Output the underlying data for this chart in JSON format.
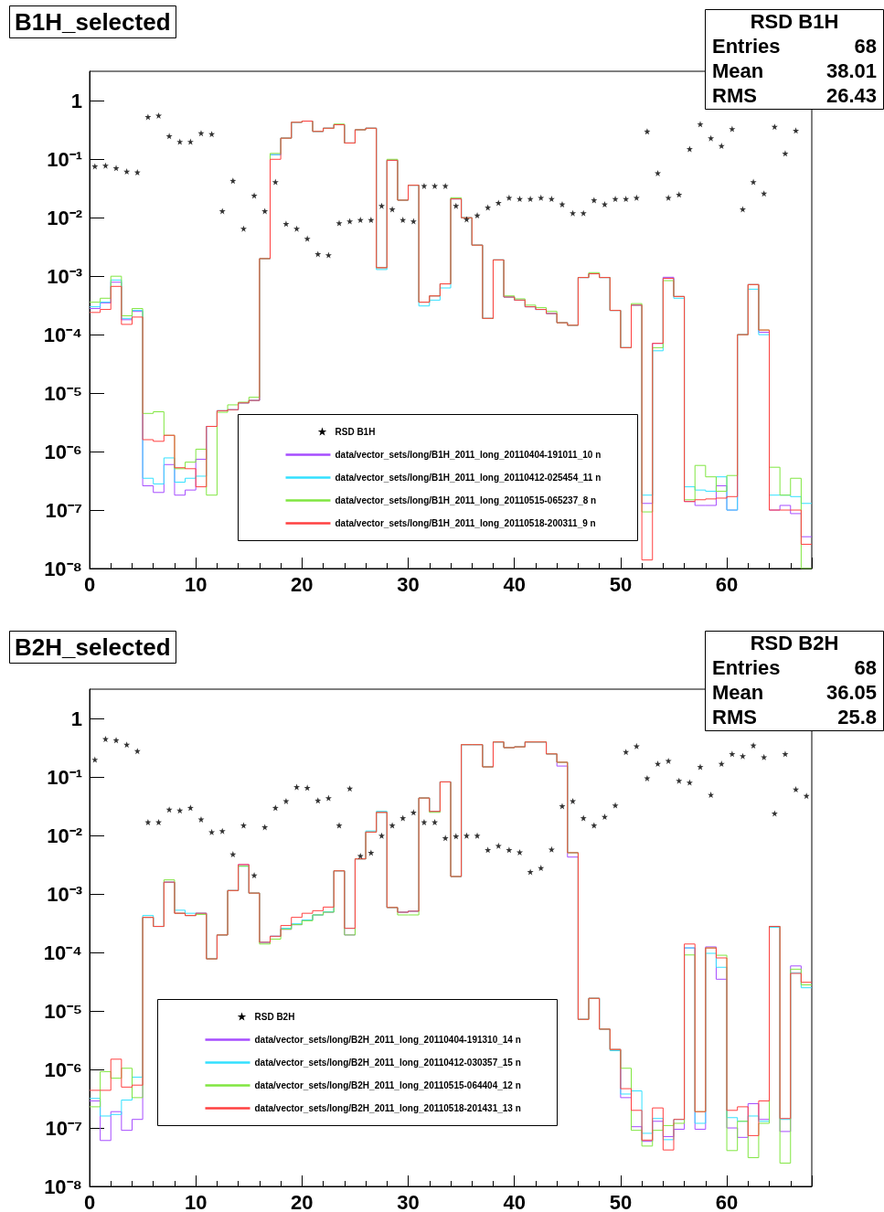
{
  "chart_data": [
    {
      "type": "histogram",
      "title": "B1H_selected",
      "bins": [
        0,
        1,
        2,
        3,
        4,
        5,
        6,
        7,
        8,
        9,
        10,
        11,
        12,
        13,
        14,
        15,
        16,
        17,
        18,
        19,
        20,
        21,
        22,
        23,
        24,
        25,
        26,
        27,
        28,
        29,
        30,
        31,
        32,
        33,
        34,
        35,
        36,
        37,
        38,
        39,
        40,
        41,
        42,
        43,
        44,
        45,
        46,
        47,
        48,
        49,
        50,
        51,
        52,
        53,
        54,
        55,
        56,
        57,
        58,
        59,
        60,
        61,
        62,
        63,
        64,
        65,
        66,
        67,
        68
      ],
      "series": [
        {
          "name": "RSD B1H",
          "type": "scatter",
          "marker": "star",
          "color": "#000000",
          "x": [
            0.5,
            1.5,
            2.5,
            3.5,
            4.5,
            5.5,
            6.5,
            7.5,
            8.5,
            9.5,
            10.5,
            11.5,
            12.5,
            13.5,
            14.5,
            15.5,
            16.5,
            17.5,
            18.5,
            19.5,
            20.5,
            21.5,
            22.5,
            23.5,
            24.5,
            25.5,
            26.5,
            27.5,
            28.5,
            29.5,
            30.5,
            31.5,
            32.5,
            33.5,
            34.5,
            35.5,
            36.5,
            37.5,
            38.5,
            39.5,
            40.5,
            41.5,
            42.5,
            43.5,
            44.5,
            45.5,
            46.5,
            47.5,
            48.5,
            49.5,
            50.5,
            51.5,
            52.5,
            53.5,
            54.5,
            55.5,
            56.5,
            57.5,
            58.5,
            59.5,
            60.5,
            61.5,
            62.5,
            63.5,
            64.5,
            65.5,
            66.5
          ],
          "values": [
            0.076,
            0.078,
            0.071,
            0.062,
            0.06,
            0.53,
            0.56,
            0.25,
            0.2,
            0.2,
            0.28,
            0.27,
            0.013,
            0.043,
            0.0065,
            0.024,
            0.013,
            0.041,
            0.0079,
            0.0065,
            0.0044,
            0.0024,
            0.0023,
            0.0081,
            0.0087,
            0.0092,
            0.0092,
            0.016,
            0.014,
            0.0092,
            0.0087,
            0.035,
            0.035,
            0.035,
            0.016,
            0.0094,
            0.011,
            0.015,
            0.018,
            0.022,
            0.021,
            0.021,
            0.022,
            0.021,
            0.017,
            0.012,
            0.012,
            0.02,
            0.017,
            0.021,
            0.021,
            0.022,
            0.3,
            0.058,
            0.022,
            0.025,
            0.15,
            0.4,
            0.23,
            0.17,
            0.33,
            0.014,
            0.041,
            0.026,
            0.36,
            0.126,
            0.31
          ]
        },
        {
          "name": "data/vector_sets/long/B1H_2011_long_20110404-191011_10 n",
          "color": "#a64dff",
          "values": [
            0.00028,
            0.00035,
            0.00079,
            0.00018,
            0.00025,
            2.6e-07,
            2e-07,
            6e-07,
            1.8e-07,
            2.2e-07,
            7.4e-07,
            2.7e-06,
            5e-06,
            5.2e-06,
            6.8e-06,
            7.5e-06,
            0.002,
            0.12,
            0.23,
            0.43,
            0.45,
            0.3,
            0.34,
            0.39,
            0.19,
            0.32,
            0.34,
            0.0014,
            0.096,
            0.02,
            0.036,
            0.00036,
            0.00046,
            0.00074,
            0.021,
            0.01,
            0.0034,
            0.00019,
            0.0019,
            0.00044,
            0.00039,
            0.0003,
            0.00027,
            0.00023,
            0.00016,
            0.000145,
            0.00095,
            0.0011,
            0.00095,
            0.00026,
            6e-05,
            0.00032,
            1.3e-07,
            7.1e-05,
            0.00096,
            0.00045,
            1.4e-07,
            1.2e-07,
            1.2e-07,
            2.6e-07,
            1e-07,
            0.0001,
            0.00072,
            0.00011,
            1e-07,
            1.2e-07,
            8.7e-08,
            3.5e-08
          ]
        },
        {
          "name": "data/vector_sets/long/B1H_2011_long_20110412-025454_11 n",
          "color": "#33e0ff",
          "values": [
            0.0003,
            0.00036,
            0.00086,
            0.00019,
            0.00026,
            3.5e-07,
            2.8e-07,
            7.8e-07,
            3e-07,
            3.5e-07,
            3.8e-07,
            2.7e-06,
            5e-06,
            5.2e-06,
            6.8e-06,
            7.5e-06,
            0.002,
            0.12,
            0.23,
            0.43,
            0.45,
            0.3,
            0.34,
            0.39,
            0.19,
            0.32,
            0.34,
            0.0013,
            0.096,
            0.02,
            0.036,
            0.00031,
            0.00039,
            0.00063,
            0.021,
            0.01,
            0.0034,
            0.00019,
            0.0019,
            0.00044,
            0.00039,
            0.0003,
            0.00027,
            0.00023,
            0.00016,
            0.000145,
            0.00095,
            0.0011,
            0.00095,
            0.00026,
            6e-05,
            0.00032,
            1.8e-07,
            5.3e-05,
            0.00092,
            0.00042,
            2.5e-07,
            2.2e-07,
            2.1e-07,
            3.7e-07,
            1e-07,
            0.0001,
            0.0006,
            0.0001,
            1.8e-07,
            1.8e-07,
            1.7e-07,
            1.3e-07
          ]
        },
        {
          "name": "data/vector_sets/long/B1H_2011_long_20110515-065237_8 n",
          "color": "#80e640",
          "values": [
            0.00036,
            0.00042,
            0.001,
            0.00021,
            0.00028,
            4.5e-06,
            4.8e-06,
            1.9e-06,
            5.1e-07,
            6.6e-07,
            1.1e-06,
            1.8e-07,
            4.7e-06,
            6.3e-06,
            7e-06,
            8.5e-06,
            0.002,
            0.126,
            0.23,
            0.43,
            0.45,
            0.3,
            0.34,
            0.4,
            0.19,
            0.32,
            0.34,
            0.0014,
            0.1,
            0.02,
            0.036,
            0.00036,
            0.00046,
            0.00074,
            0.022,
            0.01,
            0.0034,
            0.00019,
            0.0019,
            0.00046,
            0.00041,
            0.00032,
            0.00029,
            0.00025,
            0.00016,
            0.000145,
            0.00095,
            0.00115,
            0.00095,
            0.00026,
            6e-05,
            0.00034,
            9.3e-08,
            6e-05,
            0.00084,
            0.00045,
            1.5e-07,
            5.8e-07,
            3.7e-07,
            2.1e-07,
            3.9e-07,
            0.0001,
            0.00072,
            0.00012,
            5.4e-07,
            1.8e-07,
            3.5e-07,
            1e-08
          ]
        },
        {
          "name": "data/vector_sets/long/B1H_2011_long_20110518-200311_9 n",
          "color": "#ff4040",
          "values": [
            0.00024,
            0.00027,
            0.00067,
            0.00015,
            0.0002,
            1.6e-06,
            1.5e-06,
            1.9e-06,
            5.3e-07,
            5.1e-07,
            2.5e-07,
            2.7e-06,
            5e-06,
            5.2e-06,
            6.8e-06,
            7.5e-06,
            0.002,
            0.1,
            0.23,
            0.43,
            0.45,
            0.3,
            0.34,
            0.39,
            0.19,
            0.32,
            0.34,
            0.0014,
            0.096,
            0.02,
            0.036,
            0.00036,
            0.00046,
            0.00074,
            0.021,
            0.01,
            0.0034,
            0.00019,
            0.0019,
            0.00044,
            0.00039,
            0.0003,
            0.00027,
            0.00023,
            0.00016,
            0.000145,
            0.00095,
            0.0011,
            0.00095,
            0.00026,
            6e-05,
            0.00032,
            1.4e-08,
            7.1e-05,
            0.00092,
            0.00045,
            1.4e-07,
            1.5e-07,
            1.55e-07,
            1.6e-07,
            1.7e-07,
            0.0001,
            0.00072,
            0.00012,
            1e-07,
            1e-07,
            1e-07,
            2.6e-08
          ]
        }
      ],
      "xlim": [
        0,
        68
      ],
      "xticks": [
        0,
        10,
        20,
        30,
        40,
        50,
        60
      ],
      "ylim": [
        1e-08,
        3.2
      ],
      "yticks": [
        {
          "value": 1e-08,
          "label": "10⁻⁸"
        },
        {
          "value": 1e-07,
          "label": "10⁻⁷"
        },
        {
          "value": 1e-06,
          "label": "10⁻⁶"
        },
        {
          "value": 1e-05,
          "label": "10⁻⁵"
        },
        {
          "value": 0.0001,
          "label": "10⁻⁴"
        },
        {
          "value": 0.001,
          "label": "10⁻³"
        },
        {
          "value": 0.01,
          "label": "10⁻²"
        },
        {
          "value": 0.1,
          "label": "10⁻¹"
        },
        1
      ],
      "log": true,
      "grid": false,
      "legend": "bottom",
      "annotations": [
        "RSD B1H",
        "Entries 68",
        "Mean 38.01",
        "RMS 26.43"
      ]
    },
    {
      "type": "histogram",
      "title": "B2H_selected",
      "bins": [
        0,
        1,
        2,
        3,
        4,
        5,
        6,
        7,
        8,
        9,
        10,
        11,
        12,
        13,
        14,
        15,
        16,
        17,
        18,
        19,
        20,
        21,
        22,
        23,
        24,
        25,
        26,
        27,
        28,
        29,
        30,
        31,
        32,
        33,
        34,
        35,
        36,
        37,
        38,
        39,
        40,
        41,
        42,
        43,
        44,
        45,
        46,
        47,
        48,
        49,
        50,
        51,
        52,
        53,
        54,
        55,
        56,
        57,
        58,
        59,
        60,
        61,
        62,
        63,
        64,
        65,
        66,
        67,
        68
      ],
      "series": [
        {
          "name": "RSD B2H",
          "type": "scatter",
          "marker": "star",
          "color": "#000000",
          "x": [
            0.5,
            1.5,
            2.5,
            3.5,
            4.5,
            5.5,
            6.5,
            7.5,
            8.5,
            9.5,
            10.5,
            11.5,
            12.5,
            13.5,
            14.5,
            15.5,
            16.5,
            17.5,
            18.5,
            19.5,
            20.5,
            21.5,
            22.5,
            23.5,
            24.5,
            25.5,
            26.5,
            27.5,
            28.5,
            29.5,
            30.5,
            31.5,
            32.5,
            33.5,
            34.5,
            35.5,
            36.5,
            37.5,
            38.5,
            39.5,
            40.5,
            41.5,
            42.5,
            43.5,
            44.5,
            45.5,
            46.5,
            47.5,
            48.5,
            49.5,
            50.5,
            51.5,
            52.5,
            53.5,
            54.5,
            55.5,
            56.5,
            57.5,
            58.5,
            59.5,
            60.5,
            61.5,
            62.5,
            63.5,
            64.5,
            65.5,
            66.5,
            67.5
          ],
          "values": [
            0.2,
            0.45,
            0.43,
            0.36,
            0.28,
            0.017,
            0.017,
            0.028,
            0.027,
            0.03,
            0.019,
            0.0115,
            0.012,
            0.0048,
            0.015,
            0.0021,
            0.014,
            0.03,
            0.039,
            0.068,
            0.066,
            0.04,
            0.044,
            0.015,
            0.064,
            0.0045,
            0.0051,
            0.01,
            0.015,
            0.02,
            0.025,
            0.017,
            0.017,
            0.0091,
            0.0098,
            0.01,
            0.01,
            0.0057,
            0.0067,
            0.0057,
            0.0052,
            0.0024,
            0.0028,
            0.0058,
            0.032,
            0.039,
            0.02,
            0.015,
            0.021,
            0.033,
            0.27,
            0.34,
            0.096,
            0.17,
            0.19,
            0.087,
            0.081,
            0.15,
            0.05,
            0.17,
            0.25,
            0.23,
            0.35,
            0.22,
            0.024,
            0.25,
            0.062,
            0.048
          ]
        },
        {
          "name": "data/vector_sets/long/B2H_2011_long_20110404-191310_14 n",
          "color": "#a64dff",
          "values": [
            2.9e-07,
            6.1e-08,
            1.9e-07,
            9.1e-08,
            1.4e-07,
            0.0004,
            0.00028,
            0.0016,
            0.00047,
            0.00043,
            0.00047,
            7.8e-05,
            0.0002,
            0.00115,
            0.0032,
            0.00104,
            0.00015,
            0.00019,
            0.00025,
            0.0003,
            0.00036,
            0.00044,
            0.00049,
            0.0025,
            0.0002,
            0.004,
            0.0115,
            0.025,
            0.00059,
            0.00049,
            0.00051,
            0.044,
            0.026,
            0.083,
            0.002,
            0.36,
            0.36,
            0.15,
            0.4,
            0.32,
            0.33,
            0.4,
            0.4,
            0.25,
            0.155,
            0.0043,
            7.2e-06,
            1.65e-05,
            4.9e-06,
            2.2e-06,
            3.3e-07,
            1.05e-07,
            5.9e-08,
            1.3e-07,
            7.1e-08,
            9.5e-08,
            0.00012,
            9.5e-08,
            0.000125,
            3.5e-05,
            1e-07,
            6.9e-08,
            2.6e-07,
            1.4e-07,
            0.00028,
            8.7e-08,
            5.9e-05,
            2.8e-05
          ]
        },
        {
          "name": "data/vector_sets/long/B2H_2011_long_20110412-030357_15 n",
          "color": "#33e0ff",
          "values": [
            3.2e-07,
            1.6e-07,
            1.7e-07,
            3e-07,
            7.4e-07,
            0.00043,
            0.00028,
            0.0016,
            0.00053,
            0.00047,
            0.00047,
            7.8e-05,
            0.0002,
            0.00115,
            0.003,
            0.00104,
            0.00015,
            0.00019,
            0.00026,
            0.00031,
            0.00036,
            0.00044,
            0.0005,
            0.0025,
            0.00026,
            0.004,
            0.012,
            0.026,
            0.00059,
            0.00049,
            0.00051,
            0.044,
            0.026,
            0.083,
            0.002,
            0.36,
            0.36,
            0.15,
            0.4,
            0.32,
            0.33,
            0.4,
            0.4,
            0.25,
            0.18,
            0.0051,
            7.2e-06,
            1.65e-05,
            4.9e-06,
            2.1e-06,
            3.8e-07,
            4.3e-07,
            8.1e-08,
            1.45e-07,
            6.3e-08,
            1.4e-07,
            0.00012,
            1.2e-07,
            9.7e-05,
            5.6e-05,
            1.5e-07,
            1.3e-07,
            1.6e-07,
            1.3e-07,
            0.00027,
            1.4e-07,
            4.5e-05,
            2.5e-05
          ]
        },
        {
          "name": "data/vector_sets/long/B2H_2011_long_20110515-064404_12 n",
          "color": "#80e640",
          "values": [
            2.3e-07,
            9.2e-07,
            7.1e-07,
            1.05e-06,
            3.3e-07,
            0.0004,
            0.00028,
            0.00175,
            0.00047,
            0.00043,
            0.00045,
            7.8e-05,
            0.0002,
            0.00115,
            0.003,
            0.00104,
            0.00014,
            0.00017,
            0.00025,
            0.0003,
            0.00035,
            0.00044,
            0.00049,
            0.0025,
            0.0002,
            0.004,
            0.0115,
            0.025,
            0.00059,
            0.00044,
            0.00044,
            0.044,
            0.025,
            0.083,
            0.002,
            0.36,
            0.36,
            0.15,
            0.4,
            0.32,
            0.33,
            0.4,
            0.4,
            0.25,
            0.18,
            0.0051,
            7.2e-06,
            1.65e-05,
            4.9e-06,
            2.2e-06,
            1.05e-06,
            9.1e-08,
            4.9e-08,
            9.1e-08,
            1.1e-07,
            1.2e-07,
            9.1e-05,
            1.9e-07,
            0.00012,
            9e-05,
            4.1e-08,
            1.3e-07,
            3.1e-08,
            1.2e-07,
            0.00028,
            2.5e-08,
            5.2e-05,
            2.8e-05
          ]
        },
        {
          "name": "data/vector_sets/long/B2H_2011_long_20110518-201431_13 n",
          "color": "#ff4040",
          "values": [
            4.4e-07,
            4.4e-07,
            1.5e-06,
            5e-07,
            5.4e-07,
            0.0004,
            0.00028,
            0.0016,
            0.00047,
            0.00043,
            0.00047,
            7.8e-05,
            0.0002,
            0.00115,
            0.0032,
            0.00104,
            0.00015,
            0.00019,
            0.00029,
            0.0004,
            0.00047,
            0.00052,
            0.0006,
            0.0025,
            0.00026,
            0.004,
            0.0115,
            0.025,
            0.00059,
            0.00049,
            0.00051,
            0.044,
            0.026,
            0.083,
            0.002,
            0.36,
            0.36,
            0.15,
            0.4,
            0.32,
            0.33,
            0.4,
            0.4,
            0.25,
            0.18,
            0.0051,
            7.2e-06,
            1.65e-05,
            4.9e-06,
            2.2e-06,
            4.7e-07,
            2e-07,
            6.2e-08,
            2.2e-07,
            4.2e-08,
            1.4e-07,
            0.00014,
            1.9e-07,
            0.00012,
            8.1e-05,
            2e-07,
            2.3e-07,
            7.4e-08,
            2.9e-07,
            0.00028,
            1.45e-07,
            4.4e-05,
            3.1e-05
          ]
        }
      ],
      "xlim": [
        0,
        68
      ],
      "xticks": [
        0,
        10,
        20,
        30,
        40,
        50,
        60
      ],
      "ylim": [
        1e-08,
        3.2
      ],
      "yticks": [
        {
          "value": 1e-08,
          "label": "10⁻⁸"
        },
        {
          "value": 1e-07,
          "label": "10⁻⁷"
        },
        {
          "value": 1e-06,
          "label": "10⁻⁶"
        },
        {
          "value": 1e-05,
          "label": "10⁻⁵"
        },
        {
          "value": 0.0001,
          "label": "10⁻⁴"
        },
        {
          "value": 0.001,
          "label": "10⁻³"
        },
        {
          "value": 0.01,
          "label": "10⁻²"
        },
        {
          "value": 0.1,
          "label": "10⁻¹"
        },
        1
      ],
      "log": true,
      "grid": false,
      "legend": "bottom left",
      "annotations": [
        "RSD B2H",
        "Entries 68",
        "Mean 36.05",
        "RMS 25.8"
      ]
    }
  ]
}
